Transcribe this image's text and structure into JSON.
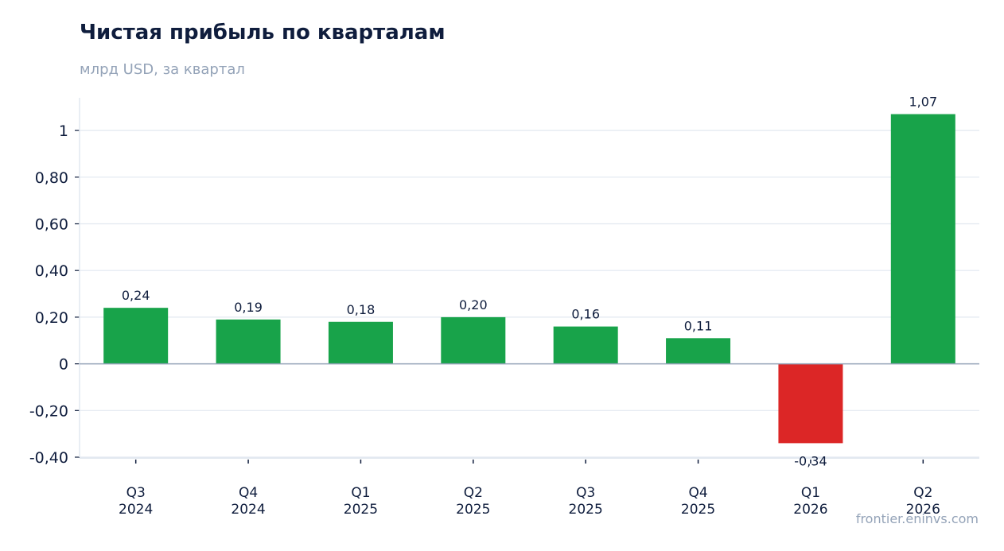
{
  "header": {
    "title": "Чистая прибыль по кварталам",
    "subtitle": "млрд USD, за квартал"
  },
  "footer": {
    "source": "frontier.eninvs.com"
  },
  "colors": {
    "positive": "#18a34a",
    "negative": "#dc2626",
    "grid": "#e2e8f0",
    "zero_line": "#94a3b8",
    "axis_text": "#0f1d3d"
  },
  "chart_data": {
    "type": "bar",
    "title": "Чистая прибыль по кварталам",
    "subtitle": "млрд USD, за квартал",
    "categories": [
      [
        "Q3",
        "2024"
      ],
      [
        "Q4",
        "2024"
      ],
      [
        "Q1",
        "2025"
      ],
      [
        "Q2",
        "2025"
      ],
      [
        "Q3",
        "2025"
      ],
      [
        "Q4",
        "2025"
      ],
      [
        "Q1",
        "2026"
      ],
      [
        "Q2",
        "2026"
      ]
    ],
    "values": [
      0.24,
      0.19,
      0.18,
      0.2,
      0.16,
      0.11,
      -0.34,
      1.07
    ],
    "value_labels": [
      "0,24",
      "0,19",
      "0,18",
      "0,20",
      "0,16",
      "0,11",
      "-0,34",
      "1,07"
    ],
    "yticks": [
      -0.4,
      -0.2,
      0,
      0.2,
      0.4,
      0.6,
      0.8,
      1
    ],
    "ytick_labels": [
      "-0,40",
      "-0,20",
      "0",
      "0,20",
      "0,40",
      "0,60",
      "0,80",
      "1"
    ],
    "ylim": [
      -0.4,
      1.14
    ],
    "grid": true,
    "legend": "none"
  }
}
